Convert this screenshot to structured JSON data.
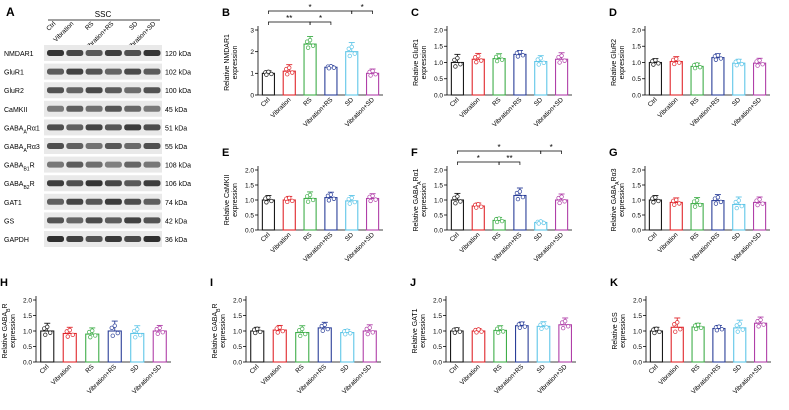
{
  "figure": {
    "panel_a": {
      "letter": "A",
      "region": "SSC",
      "lanes": [
        "Ctrl",
        "Vibration",
        "RS",
        "Vibration+RS",
        "SD",
        "Vibration+SD"
      ],
      "proteins": [
        "NMDAR1",
        "GluR1",
        "GluR2",
        "CaMKII",
        "GABAₐRα1",
        "GABAₐRα3",
        "GABAᴮR",
        "GABAᴮR",
        "GAT1",
        "GS",
        "GAPDH"
      ],
      "protein_labels": [
        {
          "base": "NMDAR1",
          "sub": "",
          "tail": ""
        },
        {
          "base": "GluR1",
          "sub": "",
          "tail": ""
        },
        {
          "base": "GluR2",
          "sub": "",
          "tail": ""
        },
        {
          "base": "CaMKII",
          "sub": "",
          "tail": ""
        },
        {
          "base": "GABA",
          "sub": "A",
          "tail": "Rα1"
        },
        {
          "base": "GABA",
          "sub": "A",
          "tail": "Rα3"
        },
        {
          "base": "GABA",
          "sub": "B1",
          "tail": "R"
        },
        {
          "base": "GABA",
          "sub": "B2",
          "tail": "R"
        },
        {
          "base": "GAT1",
          "sub": "",
          "tail": ""
        },
        {
          "base": "GS",
          "sub": "",
          "tail": ""
        },
        {
          "base": "GAPDH",
          "sub": "",
          "tail": ""
        }
      ],
      "sizes": [
        "120 kDa",
        "102 kDa",
        "100 kDa",
        "45 kDa",
        "51 kDa",
        "55 kDa",
        "108 kDa",
        "106 kDa",
        "74 kDa",
        "42 kDa",
        "36 kDa"
      ]
    },
    "colors": {
      "Ctrl": "#1a1a1a",
      "Vibration": "#e0262b",
      "RS": "#3fae49",
      "Vibration+RS": "#2b3f99",
      "SD": "#5fc6e8",
      "Vibration+SD": "#b03fa8"
    }
  },
  "chart_data": [
    {
      "panel": "B",
      "type": "bar",
      "ylabel": "Relative NMDAR1",
      "ylabel2": "expression",
      "ylim": [
        0,
        3
      ],
      "yticks": [
        "0",
        "1",
        "2",
        "3"
      ],
      "categories": [
        "Ctrl",
        "Vibration",
        "RS",
        "Vibration+RS",
        "SD",
        "Vibration+SD"
      ],
      "values": [
        1.0,
        1.1,
        2.35,
        1.28,
        2.0,
        1.0
      ],
      "errors": [
        0.12,
        0.3,
        0.35,
        0.08,
        0.42,
        0.2
      ],
      "significance": [
        {
          "from": 0,
          "to": 2,
          "label": "**"
        },
        {
          "from": 2,
          "to": 3,
          "label": "*"
        },
        {
          "from": 0,
          "to": 4,
          "label": "*"
        },
        {
          "from": 4,
          "to": 5,
          "label": "*"
        }
      ]
    },
    {
      "panel": "C",
      "type": "bar",
      "ylabel": "Relative GluR1",
      "ylabel2": "expression",
      "ylim": [
        0,
        2
      ],
      "yticks": [
        "0.0",
        "0.5",
        "1.0",
        "1.5",
        "2.0"
      ],
      "categories": [
        "Ctrl",
        "Vibration",
        "RS",
        "Vibration+RS",
        "SD",
        "Vibration+SD"
      ],
      "values": [
        1.0,
        1.1,
        1.12,
        1.25,
        1.03,
        1.1
      ],
      "errors": [
        0.25,
        0.18,
        0.15,
        0.12,
        0.18,
        0.2
      ],
      "significance": []
    },
    {
      "panel": "D",
      "type": "bar",
      "ylabel": "Relative GluR2",
      "ylabel2": "expression",
      "ylim": [
        0,
        2
      ],
      "yticks": [
        "0.0",
        "0.5",
        "1.0",
        "1.5",
        "2.0"
      ],
      "categories": [
        "Ctrl",
        "Vibration",
        "RS",
        "Vibration+RS",
        "SD",
        "Vibration+SD"
      ],
      "values": [
        1.0,
        1.03,
        0.88,
        1.15,
        0.98,
        0.98
      ],
      "errors": [
        0.12,
        0.15,
        0.1,
        0.12,
        0.12,
        0.15
      ],
      "significance": []
    },
    {
      "panel": "E",
      "type": "bar",
      "ylabel": "Relative CaMKII",
      "ylabel2": "expression",
      "ylim": [
        0,
        2
      ],
      "yticks": [
        "0.0",
        "0.5",
        "1.0",
        "1.5",
        "2.0"
      ],
      "categories": [
        "Ctrl",
        "Vibration",
        "RS",
        "Vibration+RS",
        "SD",
        "Vibration+SD"
      ],
      "values": [
        1.0,
        1.0,
        1.05,
        1.08,
        0.97,
        1.05
      ],
      "errors": [
        0.15,
        0.12,
        0.22,
        0.18,
        0.18,
        0.16
      ],
      "significance": []
    },
    {
      "panel": "F",
      "type": "bar",
      "ylabel": "Relative GABAₐRα1",
      "ylabel2": "expression",
      "ylim": [
        0,
        2
      ],
      "yticks": [
        "0.0",
        "0.5",
        "1.0",
        "1.5",
        "2.0"
      ],
      "categories": [
        "Ctrl",
        "Vibration",
        "RS",
        "Vibration+RS",
        "SD",
        "Vibration+SD"
      ],
      "values": [
        1.0,
        0.8,
        0.32,
        1.15,
        0.25,
        1.0
      ],
      "errors": [
        0.22,
        0.1,
        0.1,
        0.25,
        0.05,
        0.2
      ],
      "significance": [
        {
          "from": 0,
          "to": 2,
          "label": "*"
        },
        {
          "from": 2,
          "to": 3,
          "label": "**"
        },
        {
          "from": 0,
          "to": 4,
          "label": "*"
        },
        {
          "from": 4,
          "to": 5,
          "label": "*"
        }
      ]
    },
    {
      "panel": "G",
      "type": "bar",
      "ylabel": "Relative GABAₐRα3",
      "ylabel2": "expression",
      "ylim": [
        0,
        2
      ],
      "yticks": [
        "0.0",
        "0.5",
        "1.0",
        "1.5",
        "2.0"
      ],
      "categories": [
        "Ctrl",
        "Vibration",
        "RS",
        "Vibration+RS",
        "SD",
        "Vibration+SD"
      ],
      "values": [
        1.0,
        0.92,
        0.88,
        0.98,
        0.85,
        0.92
      ],
      "errors": [
        0.15,
        0.15,
        0.2,
        0.2,
        0.25,
        0.18
      ],
      "significance": []
    },
    {
      "panel": "H",
      "type": "bar",
      "ylabel": "Relative GABAᴮR",
      "ylabel2": "expression",
      "ylim": [
        0,
        2
      ],
      "yticks": [
        "0.0",
        "0.5",
        "1.0",
        "1.5",
        "2.0"
      ],
      "categories": [
        "Ctrl",
        "Vibration",
        "RS",
        "Vibration+RS",
        "SD",
        "Vibration+SD"
      ],
      "values": [
        1.0,
        0.92,
        0.9,
        1.0,
        0.92,
        1.0
      ],
      "errors": [
        0.25,
        0.2,
        0.2,
        0.32,
        0.25,
        0.18
      ],
      "significance": []
    },
    {
      "panel": "I",
      "type": "bar",
      "ylabel": "Relative GABAᴮR",
      "ylabel2": "expression",
      "ylim": [
        0,
        2
      ],
      "yticks": [
        "0.0",
        "0.5",
        "1.0",
        "1.5",
        "2.0"
      ],
      "categories": [
        "Ctrl",
        "Vibration",
        "RS",
        "Vibration+RS",
        "SD",
        "Vibration+SD"
      ],
      "values": [
        1.0,
        1.03,
        0.95,
        1.1,
        0.95,
        1.0
      ],
      "errors": [
        0.12,
        0.15,
        0.22,
        0.18,
        0.1,
        0.2
      ],
      "significance": []
    },
    {
      "panel": "J",
      "type": "bar",
      "ylabel": "Relative GAT1",
      "ylabel2": "expression",
      "ylim": [
        0,
        2
      ],
      "yticks": [
        "0.0",
        "0.5",
        "1.0",
        "1.5",
        "2.0"
      ],
      "categories": [
        "Ctrl",
        "Vibration",
        "RS",
        "Vibration+RS",
        "SD",
        "Vibration+SD"
      ],
      "values": [
        1.0,
        1.0,
        1.02,
        1.17,
        1.15,
        1.2
      ],
      "errors": [
        0.1,
        0.08,
        0.15,
        0.12,
        0.15,
        0.22
      ],
      "significance": []
    },
    {
      "panel": "K",
      "type": "bar",
      "ylabel": "Relative GS",
      "ylabel2": "expression",
      "ylim": [
        0,
        2
      ],
      "yticks": [
        "0.0",
        "0.5",
        "1.0",
        "1.5",
        "2.0"
      ],
      "categories": [
        "Ctrl",
        "Vibration",
        "RS",
        "Vibration+RS",
        "SD",
        "Vibration+SD"
      ],
      "values": [
        1.0,
        1.12,
        1.13,
        1.08,
        1.1,
        1.25
      ],
      "errors": [
        0.12,
        0.3,
        0.12,
        0.1,
        0.25,
        0.2
      ],
      "significance": []
    }
  ]
}
